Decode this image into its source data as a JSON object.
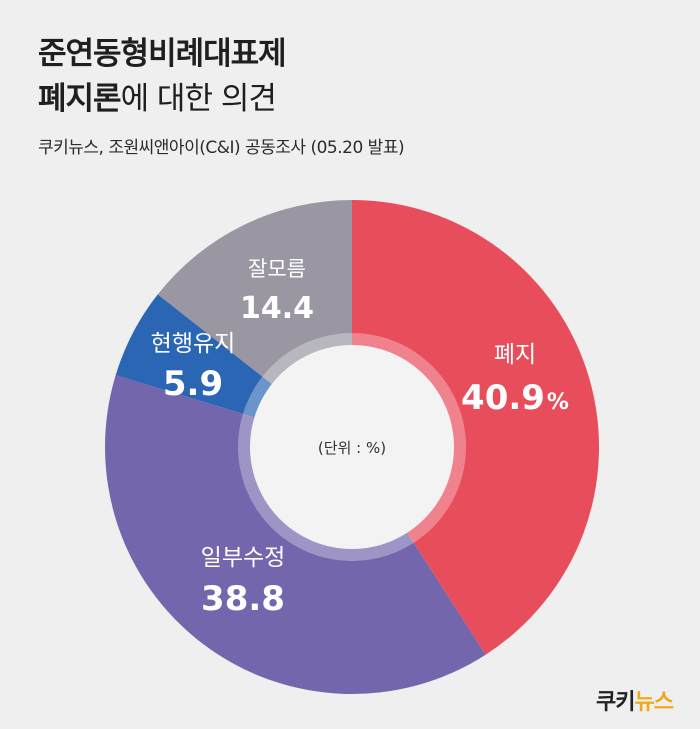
{
  "title": {
    "line1": "준연동형비례대표제",
    "line2_strong": "폐지론",
    "line2_rest": "에 대한 의견"
  },
  "subtitle": "쿠키뉴스, 조원씨앤아이(C&I) 공동조사 (05.20 발표)",
  "center_label": "(단위 : %)",
  "logo": {
    "part1": "쿠키",
    "part2": "뉴스"
  },
  "colors": {
    "background": "#efefef",
    "abolish": "#e84d5c",
    "amend": "#7466ad",
    "keep": "#2a66b3",
    "unknown": "#9a97a2"
  },
  "chart_data": {
    "type": "pie",
    "donut": true,
    "start": "top, clockwise",
    "slices": [
      {
        "label": "폐지",
        "value": 40.9,
        "display": "40.9",
        "unit": "%",
        "color": "#e84d5c"
      },
      {
        "label": "일부수정",
        "value": 38.8,
        "display": "38.8",
        "unit": "",
        "color": "#7466ad"
      },
      {
        "label": "현행유지",
        "value": 5.9,
        "display": "5.9",
        "unit": "",
        "color": "#2a66b3"
      },
      {
        "label": "잘모름",
        "value": 14.4,
        "display": "14.4",
        "unit": "",
        "color": "#9a97a2"
      }
    ]
  }
}
